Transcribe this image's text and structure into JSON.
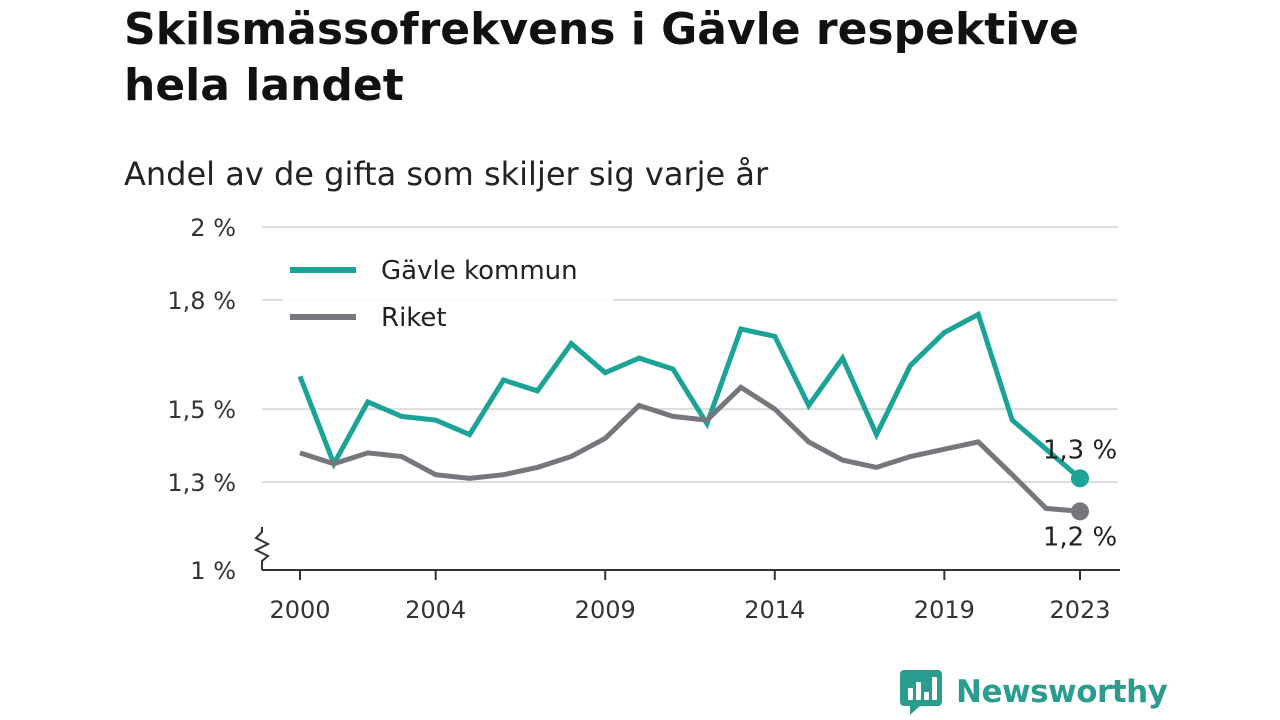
{
  "title": "Skilsmässofrekvens i Gävle respektive hela landet",
  "subtitle": "Andel av de gifta som skiljer sig varje år",
  "brand": {
    "name": "Newsworthy",
    "icon": "newsworthy-logo-icon",
    "color": "#2a9d8f"
  },
  "chart_data": {
    "type": "line",
    "title": "Skilsmässofrekvens i Gävle respektive hela landet",
    "subtitle": "Andel av de gifta som skiljer sig varje år",
    "xlabel": "",
    "ylabel": "",
    "x": [
      2000,
      2001,
      2002,
      2003,
      2004,
      2005,
      2006,
      2007,
      2008,
      2009,
      2010,
      2011,
      2012,
      2013,
      2014,
      2015,
      2016,
      2017,
      2018,
      2019,
      2020,
      2021,
      2022,
      2023
    ],
    "x_ticks": [
      {
        "value": 2000,
        "label": "2000"
      },
      {
        "value": 2004,
        "label": "2004"
      },
      {
        "value": 2009,
        "label": "2009"
      },
      {
        "value": 2014,
        "label": "2014"
      },
      {
        "value": 2019,
        "label": "2019"
      },
      {
        "value": 2023,
        "label": "2023"
      }
    ],
    "y_ticks": [
      {
        "value": 1.0,
        "label": "1 %"
      },
      {
        "value": 1.3,
        "label": "1,3 %"
      },
      {
        "value": 1.5,
        "label": "1,5 %"
      },
      {
        "value": 1.8,
        "label": "1,8 %"
      },
      {
        "value": 2.0,
        "label": "2 %"
      }
    ],
    "ylim": [
      1.0,
      2.0
    ],
    "y_axis_break": true,
    "grid": true,
    "legend_position": "top-left",
    "series": [
      {
        "name": "Gävle kommun",
        "color": "#1aa396",
        "values": [
          1.59,
          1.35,
          1.52,
          1.48,
          1.47,
          1.43,
          1.58,
          1.55,
          1.68,
          1.6,
          1.64,
          1.61,
          1.46,
          1.72,
          1.7,
          1.51,
          1.64,
          1.43,
          1.62,
          1.71,
          1.76,
          1.47,
          1.39,
          1.31
        ],
        "end_label": "1,3 %"
      },
      {
        "name": "Riket",
        "color": "#76767c",
        "values": [
          1.38,
          1.35,
          1.38,
          1.37,
          1.32,
          1.31,
          1.32,
          1.34,
          1.37,
          1.42,
          1.51,
          1.48,
          1.47,
          1.56,
          1.5,
          1.41,
          1.36,
          1.34,
          1.37,
          1.39,
          1.41,
          1.32,
          1.21,
          1.2
        ],
        "end_label": "1,2 %"
      }
    ]
  }
}
